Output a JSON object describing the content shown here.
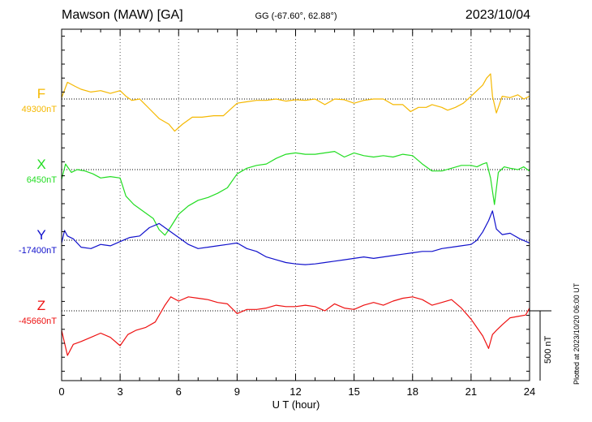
{
  "header": {
    "station": "Mawson (MAW)  [GA]",
    "coords": "GG (-67.60°,  62.88°)",
    "date": "2023/10/04"
  },
  "footer": {
    "plotted": "Plotted at 2023/10/20 06:00 UT",
    "scale": "500 nT"
  },
  "chart_data": {
    "type": "line",
    "title": "Mawson (MAW)  [GA]",
    "xlabel": "U T (hour)",
    "ylabel": "",
    "xlim": [
      0,
      24
    ],
    "x_ticks": [
      "0",
      "3",
      "6",
      "9",
      "12",
      "15",
      "18",
      "21",
      "24"
    ],
    "grid": true,
    "scale_bar_nT": 500,
    "series": [
      {
        "name": "F",
        "baseline_label": "49300nT",
        "baseline": 49300,
        "color": "#f5b800",
        "x": [
          0,
          0.3,
          0.7,
          1.0,
          1.5,
          2.0,
          2.5,
          3.0,
          3.3,
          3.6,
          4.0,
          4.5,
          5.0,
          5.5,
          5.8,
          6.2,
          6.7,
          7.2,
          7.8,
          8.3,
          9.0,
          9.5,
          10.0,
          10.5,
          11.0,
          11.5,
          12.0,
          12.5,
          13.0,
          13.5,
          14.0,
          14.5,
          15.0,
          15.5,
          16.0,
          16.5,
          17.0,
          17.5,
          17.9,
          18.3,
          18.7,
          19.0,
          19.5,
          19.8,
          20.2,
          20.6,
          21.0,
          21.3,
          21.6,
          21.8,
          22.0,
          22.1,
          22.3,
          22.6,
          23.0,
          23.4,
          23.7,
          24.0
        ],
        "y": [
          49310,
          49420,
          49390,
          49370,
          49350,
          49360,
          49340,
          49360,
          49320,
          49290,
          49300,
          49230,
          49160,
          49120,
          49070,
          49120,
          49170,
          49170,
          49180,
          49180,
          49270,
          49280,
          49290,
          49290,
          49300,
          49285,
          49295,
          49290,
          49300,
          49260,
          49300,
          49295,
          49270,
          49290,
          49300,
          49300,
          49260,
          49260,
          49210,
          49240,
          49240,
          49260,
          49240,
          49220,
          49240,
          49270,
          49320,
          49360,
          49400,
          49450,
          49480,
          49320,
          49200,
          49320,
          49310,
          49330,
          49300,
          49320
        ]
      },
      {
        "name": "X",
        "baseline_label": "6450nT",
        "baseline": 6450,
        "color": "#22dd22",
        "x": [
          0,
          0.2,
          0.5,
          0.8,
          1.2,
          1.6,
          2.0,
          2.5,
          3.0,
          3.3,
          3.7,
          4.2,
          4.7,
          5.0,
          5.3,
          5.6,
          6.0,
          6.5,
          7.0,
          7.5,
          8.0,
          8.5,
          9.0,
          9.5,
          10.0,
          10.5,
          11.0,
          11.5,
          12.0,
          12.5,
          13.0,
          13.5,
          14.0,
          14.5,
          15.0,
          15.5,
          16.0,
          16.5,
          17.0,
          17.5,
          18.0,
          18.5,
          19.0,
          19.5,
          20.0,
          20.5,
          21.0,
          21.3,
          21.6,
          21.8,
          22.0,
          22.2,
          22.4,
          22.7,
          23.0,
          23.4,
          23.7,
          24.0
        ],
        "y": [
          6380,
          6490,
          6430,
          6450,
          6440,
          6420,
          6390,
          6400,
          6390,
          6260,
          6200,
          6150,
          6100,
          6020,
          5980,
          6040,
          6130,
          6190,
          6230,
          6250,
          6280,
          6320,
          6420,
          6460,
          6480,
          6490,
          6530,
          6560,
          6570,
          6560,
          6560,
          6570,
          6580,
          6540,
          6570,
          6550,
          6540,
          6550,
          6540,
          6560,
          6550,
          6490,
          6440,
          6440,
          6460,
          6480,
          6480,
          6470,
          6490,
          6500,
          6390,
          6200,
          6430,
          6470,
          6460,
          6450,
          6470,
          6440
        ]
      },
      {
        "name": "Y",
        "baseline_label": "-17400nT",
        "baseline": -17400,
        "color": "#1111cc",
        "x": [
          0,
          0.15,
          0.3,
          0.6,
          1.0,
          1.5,
          2.0,
          2.5,
          3.0,
          3.5,
          4.0,
          4.5,
          5.0,
          5.5,
          6.0,
          6.5,
          7.0,
          7.5,
          8.0,
          8.5,
          9.0,
          9.5,
          10.0,
          10.5,
          11.0,
          11.5,
          12.0,
          12.5,
          13.0,
          13.5,
          14.0,
          14.5,
          15.0,
          15.5,
          16.0,
          16.5,
          17.0,
          17.5,
          18.0,
          18.5,
          19.0,
          19.5,
          20.0,
          20.5,
          21.0,
          21.3,
          21.6,
          21.9,
          22.1,
          22.3,
          22.6,
          23.0,
          23.5,
          24.0
        ],
        "y": [
          -17420,
          -17330,
          -17370,
          -17390,
          -17450,
          -17460,
          -17430,
          -17440,
          -17410,
          -17380,
          -17370,
          -17310,
          -17280,
          -17330,
          -17380,
          -17430,
          -17460,
          -17450,
          -17440,
          -17430,
          -17420,
          -17460,
          -17480,
          -17520,
          -17540,
          -17560,
          -17570,
          -17575,
          -17570,
          -17560,
          -17550,
          -17540,
          -17530,
          -17520,
          -17530,
          -17520,
          -17510,
          -17500,
          -17490,
          -17480,
          -17480,
          -17460,
          -17450,
          -17440,
          -17430,
          -17400,
          -17340,
          -17260,
          -17190,
          -17320,
          -17360,
          -17350,
          -17390,
          -17420
        ]
      },
      {
        "name": "Z",
        "baseline_label": "-45660nT",
        "baseline": -45660,
        "color": "#ee1111",
        "x": [
          0,
          0.3,
          0.6,
          1.0,
          1.5,
          2.0,
          2.5,
          3.0,
          3.4,
          3.8,
          4.3,
          4.8,
          5.3,
          5.6,
          6.0,
          6.5,
          7.0,
          7.5,
          8.0,
          8.5,
          9.0,
          9.5,
          10.0,
          10.5,
          11.0,
          11.5,
          12.0,
          12.5,
          13.0,
          13.5,
          14.0,
          14.5,
          15.0,
          15.5,
          16.0,
          16.5,
          17.0,
          17.5,
          18.0,
          18.5,
          19.0,
          19.5,
          20.0,
          20.5,
          21.0,
          21.3,
          21.6,
          21.9,
          22.1,
          22.3,
          22.6,
          23.0,
          23.4,
          23.8,
          24.0
        ],
        "y": [
          -45800,
          -45980,
          -45900,
          -45880,
          -45850,
          -45820,
          -45850,
          -45910,
          -45830,
          -45800,
          -45780,
          -45740,
          -45620,
          -45560,
          -45590,
          -45560,
          -45570,
          -45580,
          -45600,
          -45610,
          -45680,
          -45650,
          -45650,
          -45640,
          -45620,
          -45630,
          -45630,
          -45620,
          -45630,
          -45660,
          -45610,
          -45640,
          -45650,
          -45620,
          -45600,
          -45620,
          -45590,
          -45570,
          -45560,
          -45580,
          -45620,
          -45600,
          -45580,
          -45640,
          -45720,
          -45780,
          -45840,
          -45930,
          -45830,
          -45800,
          -45760,
          -45710,
          -45700,
          -45690,
          -45640
        ]
      }
    ]
  }
}
